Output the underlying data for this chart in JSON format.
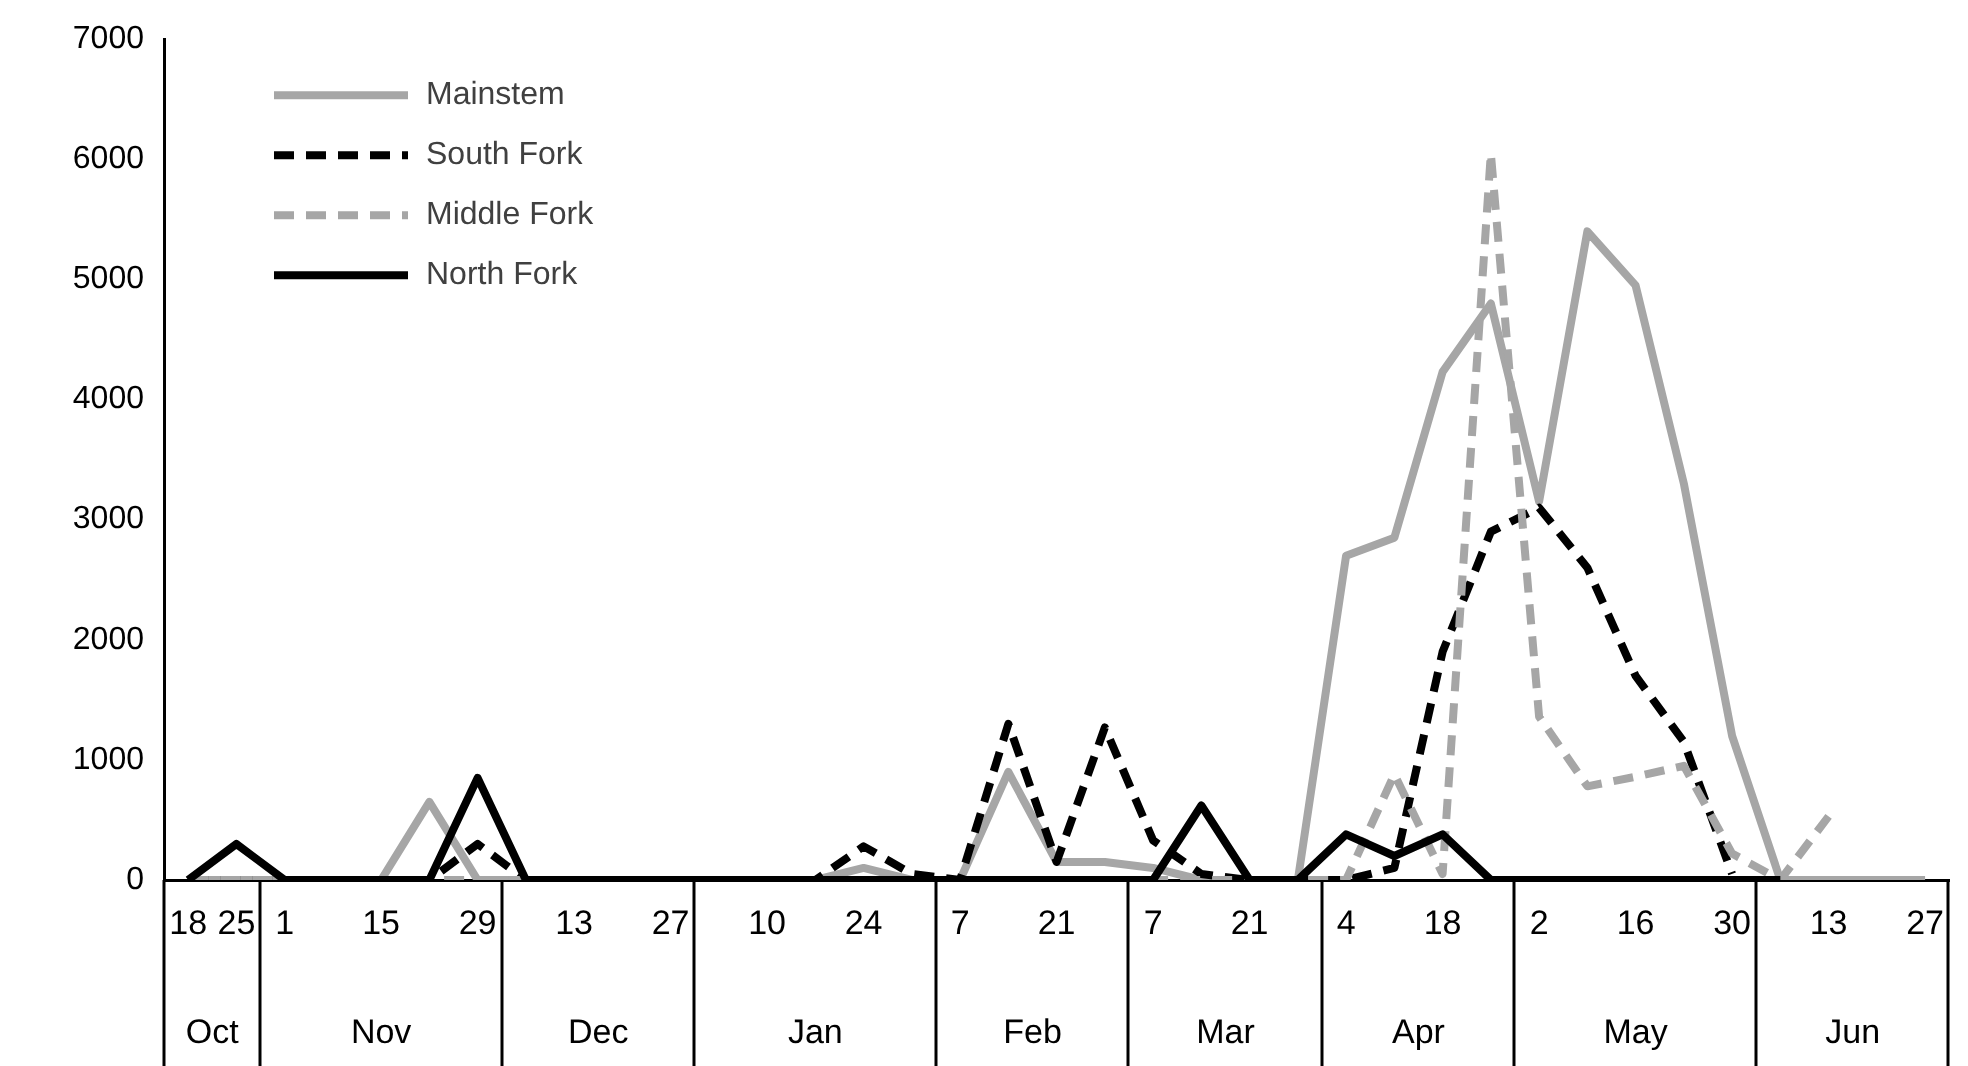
{
  "chart_data": {
    "type": "line",
    "x": [
      "2000-10-18",
      "2000-10-25",
      "2000-11-01",
      "2000-11-08",
      "2000-11-15",
      "2000-11-22",
      "2000-11-29",
      "2000-12-06",
      "2000-12-13",
      "2000-12-20",
      "2000-12-27",
      "2001-01-03",
      "2001-01-10",
      "2001-01-17",
      "2001-01-24",
      "2001-01-31",
      "2001-02-07",
      "2001-02-14",
      "2001-02-21",
      "2001-02-28",
      "2001-03-07",
      "2001-03-14",
      "2001-03-21",
      "2001-03-28",
      "2001-04-04",
      "2001-04-11",
      "2001-04-18",
      "2001-04-25",
      "2001-05-02",
      "2001-05-09",
      "2001-05-16",
      "2001-05-23",
      "2001-05-30",
      "2001-06-06",
      "2001-06-13",
      "2001-06-20",
      "2001-06-27"
    ],
    "series": [
      {
        "name": "Mainstem",
        "color": "#a6a6a6",
        "line_style": "solid",
        "values": [
          0,
          0,
          0,
          0,
          0,
          650,
          0,
          0,
          0,
          0,
          0,
          0,
          0,
          0,
          100,
          0,
          0,
          900,
          150,
          150,
          100,
          0,
          0,
          0,
          2700,
          2850,
          4230,
          4800,
          3150,
          5400,
          4950,
          3300,
          1200,
          0,
          0,
          0,
          0
        ]
      },
      {
        "name": "South Fork",
        "color": "#000000",
        "line_style": "dashed",
        "values": [
          0,
          0,
          0,
          0,
          0,
          0,
          300,
          0,
          0,
          0,
          0,
          0,
          0,
          0,
          280,
          50,
          0,
          1300,
          150,
          1270,
          330,
          50,
          0,
          0,
          0,
          100,
          1900,
          2900,
          3100,
          2600,
          1700,
          1150,
          50,
          null,
          null,
          null,
          null
        ]
      },
      {
        "name": "Middle Fork",
        "color": "#a6a6a6",
        "line_style": "dashed",
        "values": [
          0,
          0,
          0,
          0,
          0,
          0,
          0,
          0,
          0,
          0,
          0,
          0,
          0,
          0,
          0,
          0,
          0,
          0,
          0,
          0,
          0,
          0,
          0,
          0,
          0,
          880,
          50,
          6050,
          1360,
          780,
          860,
          950,
          220,
          0,
          530,
          null,
          null
        ]
      },
      {
        "name": "North Fork",
        "color": "#000000",
        "line_style": "solid",
        "values": [
          0,
          300,
          0,
          0,
          0,
          0,
          850,
          0,
          0,
          0,
          0,
          0,
          0,
          0,
          0,
          0,
          0,
          0,
          0,
          0,
          0,
          620,
          0,
          0,
          380,
          200,
          380,
          0,
          0,
          0,
          0,
          0,
          0,
          0,
          null,
          null,
          null
        ]
      }
    ],
    "xlim": [
      "2000-10-14T12:00",
      "2001-06-30T12:00"
    ],
    "xticks": [
      {
        "value": "2000-10-18",
        "label": "18"
      },
      {
        "value": "2000-10-25",
        "label": "25"
      },
      {
        "value": "2000-11-01",
        "label": "1"
      },
      {
        "value": "2000-11-15",
        "label": "15"
      },
      {
        "value": "2000-11-29",
        "label": "29"
      },
      {
        "value": "2000-12-13",
        "label": "13"
      },
      {
        "value": "2000-12-27",
        "label": "27"
      },
      {
        "value": "2001-01-10",
        "label": "10"
      },
      {
        "value": "2001-01-24",
        "label": "24"
      },
      {
        "value": "2001-02-07",
        "label": "7"
      },
      {
        "value": "2001-02-21",
        "label": "21"
      },
      {
        "value": "2001-03-07",
        "label": "7"
      },
      {
        "value": "2001-03-21",
        "label": "21"
      },
      {
        "value": "2001-04-04",
        "label": "4"
      },
      {
        "value": "2001-04-18",
        "label": "18"
      },
      {
        "value": "2001-05-02",
        "label": "2"
      },
      {
        "value": "2001-05-16",
        "label": "16"
      },
      {
        "value": "2001-05-30",
        "label": "30"
      },
      {
        "value": "2001-06-13",
        "label": "13"
      },
      {
        "value": "2001-06-27",
        "label": "27"
      }
    ],
    "ylim": [
      0,
      7000
    ],
    "yticks": [
      0,
      1000,
      2000,
      3000,
      4000,
      5000,
      6000,
      7000
    ],
    "annotations": [
      "Oct",
      "Nov",
      "Dec",
      "Jan",
      "Feb",
      "Mar",
      "Apr",
      "May",
      "Jun"
    ],
    "grid": false,
    "legend": "top left"
  }
}
